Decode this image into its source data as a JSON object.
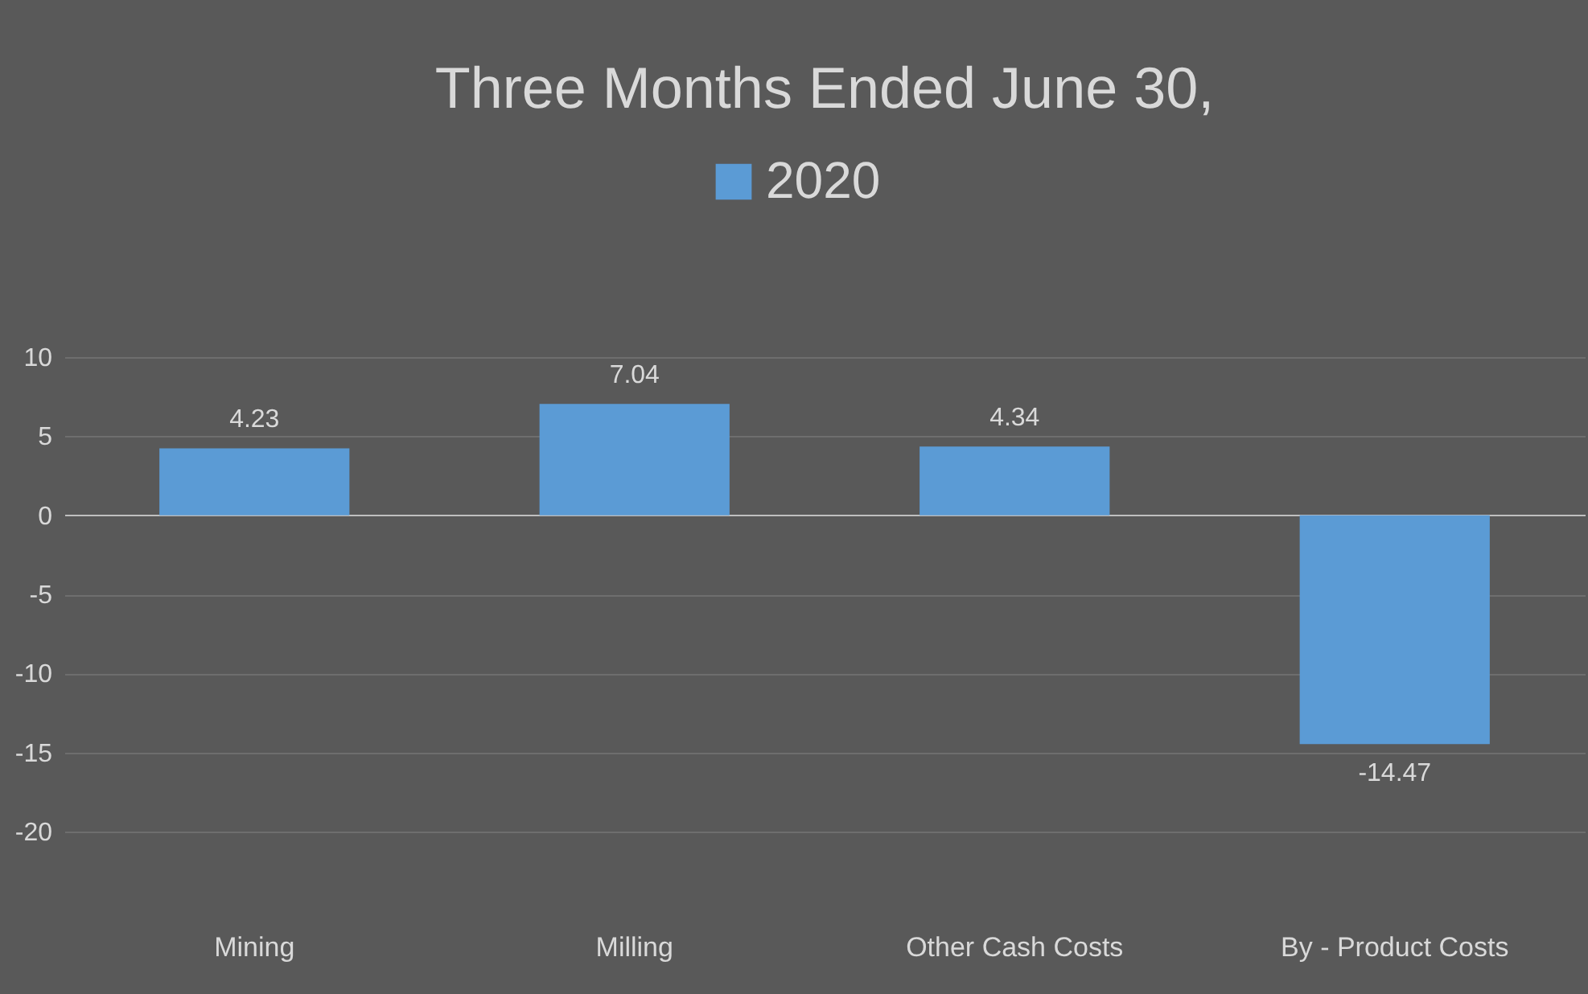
{
  "chart_data": {
    "type": "bar",
    "title": "Three Months Ended June 30,",
    "categories": [
      "Mining",
      "Milling",
      "Other Cash Costs",
      "By - Product Costs"
    ],
    "series": [
      {
        "name": "2020",
        "color": "#5b9bd5",
        "values": [
          4.23,
          7.04,
          4.34,
          -14.47
        ]
      }
    ],
    "ylim": [
      -20,
      10
    ],
    "yticks": [
      -20,
      -15,
      -10,
      -5,
      0,
      5,
      10
    ],
    "grid": "y",
    "legend": "top",
    "data_labels": true
  }
}
